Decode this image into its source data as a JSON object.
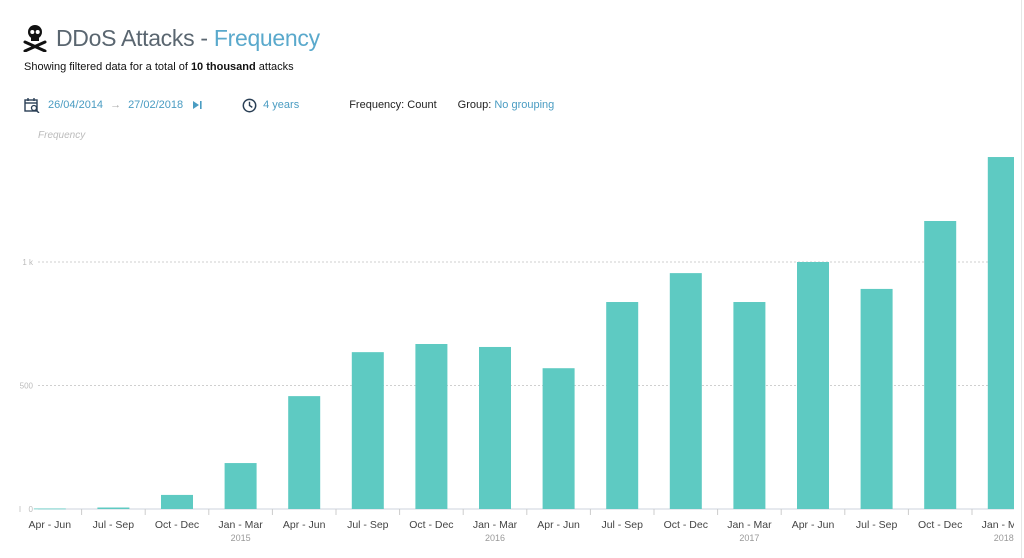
{
  "header": {
    "icon": "skull-crossbones-icon",
    "title_main": "DDoS Attacks",
    "title_sep": " - ",
    "title_accent": "Frequency",
    "subtitle_pre": "Showing filtered data for a total of ",
    "subtitle_bold": "10 thousand",
    "subtitle_post": " attacks"
  },
  "toolbar": {
    "date_from": "26/04/2014",
    "date_arrow": "→",
    "date_to": "27/02/2018",
    "duration": "4 years",
    "frequency_label": "Frequency: Count",
    "group_label": "Group: ",
    "group_value": "No grouping"
  },
  "colors": {
    "bar": "#5ecac2",
    "accent": "#5aa9cc"
  },
  "chart_data": {
    "type": "bar",
    "title": "DDoS Attacks - Frequency",
    "ylabel": "Frequency",
    "xlabel": "",
    "ylim": [
      0,
      1500
    ],
    "yticks": [
      {
        "v": 0,
        "label": "0"
      },
      {
        "v": 500,
        "label": "500"
      },
      {
        "v": 1000,
        "label": "1 k"
      }
    ],
    "grid": true,
    "categories": [
      "Apr - Jun",
      "Jul - Sep",
      "Oct - Dec",
      "Jan - Mar",
      "Apr - Jun",
      "Jul - Sep",
      "Oct - Dec",
      "Jan - Mar",
      "Apr - Jun",
      "Jul - Sep",
      "Oct - Dec",
      "Jan - Mar",
      "Apr - Jun",
      "Jul - Sep",
      "Oct - Dec",
      "Jan - Mar"
    ],
    "year_labels": [
      {
        "index": 3,
        "label": "2015"
      },
      {
        "index": 7,
        "label": "2016"
      },
      {
        "index": 11,
        "label": "2017"
      },
      {
        "index": 15,
        "label": "2018"
      }
    ],
    "values": [
      2,
      6,
      57,
      186,
      457,
      635,
      668,
      656,
      570,
      838,
      955,
      838,
      1000,
      891,
      1166,
      1425
    ]
  }
}
